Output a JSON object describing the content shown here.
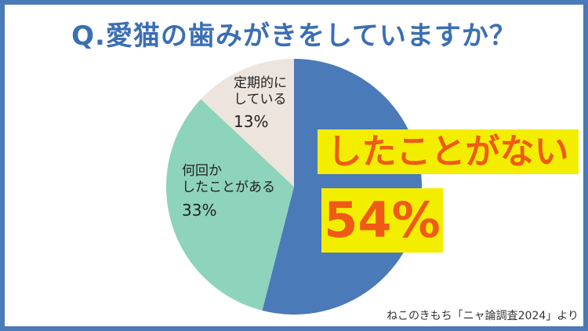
{
  "chart_data": {
    "type": "pie",
    "title": "Q.愛猫の歯みがきをしていますか？",
    "categories": [
      "したことがない",
      "何回か\nしたことがある",
      "定期的に\nしている"
    ],
    "values": [
      54,
      33,
      13
    ],
    "value_labels": [
      "54%",
      "33%",
      "13%"
    ],
    "colors": [
      "#4a7ab8",
      "#8ed3bb",
      "#ede4dd"
    ],
    "source": "ねこのきもち「ニャ論調査2024」より"
  }
}
